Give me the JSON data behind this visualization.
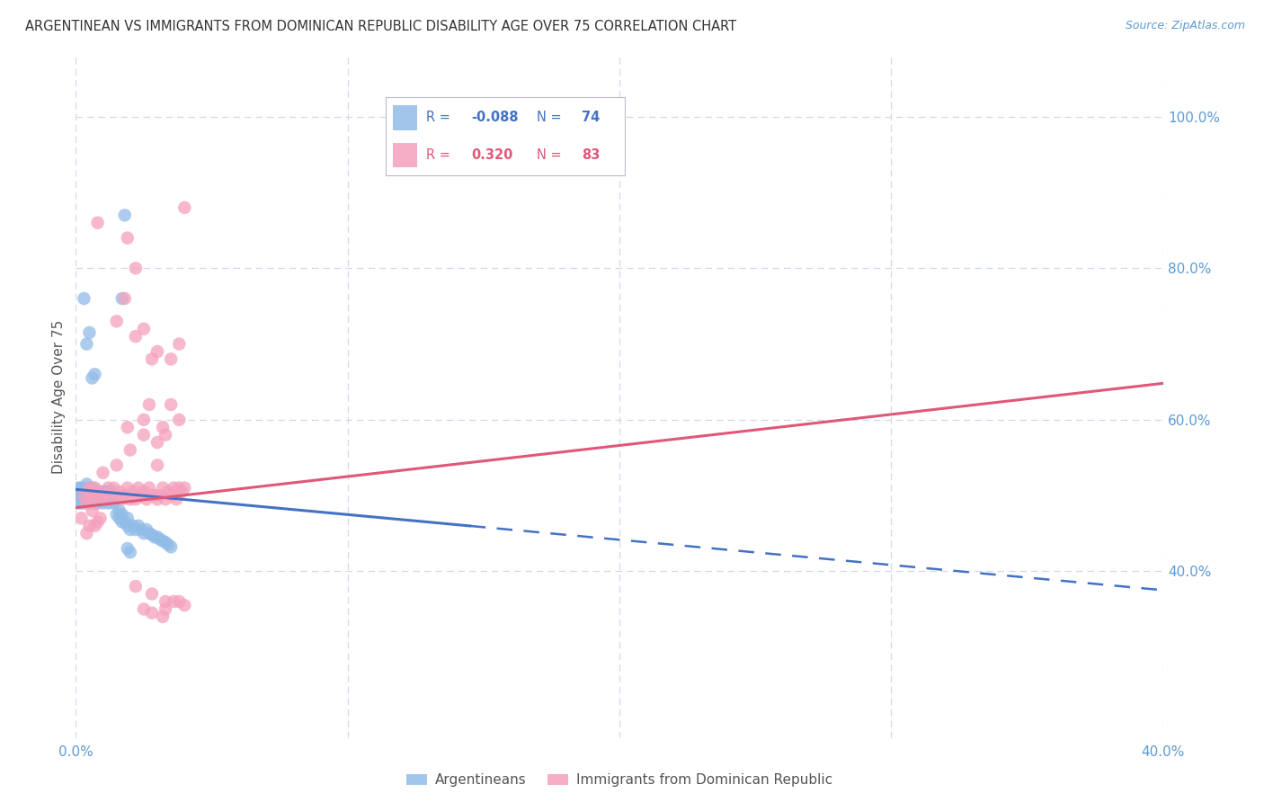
{
  "title": "ARGENTINEAN VS IMMIGRANTS FROM DOMINICAN REPUBLIC DISABILITY AGE OVER 75 CORRELATION CHART",
  "source": "Source: ZipAtlas.com",
  "ylabel": "Disability Age Over 75",
  "xlim": [
    0.0,
    0.4
  ],
  "ylim": [
    0.18,
    1.08
  ],
  "xtick_positions": [
    0.0,
    0.1,
    0.2,
    0.3,
    0.4
  ],
  "xticklabels": [
    "0.0%",
    "",
    "",
    "",
    "40.0%"
  ],
  "yticks_right": [
    0.4,
    0.6,
    0.8,
    1.0
  ],
  "ytick_right_labels": [
    "40.0%",
    "60.0%",
    "80.0%",
    "100.0%"
  ],
  "legend_R1": "-0.088",
  "legend_N1": "74",
  "legend_R2": "0.320",
  "legend_N2": "83",
  "blue_color": "#92bce8",
  "pink_color": "#f5a0bc",
  "blue_line_color": "#4472c4",
  "pink_line_color": "#e05878",
  "axis_color": "#5b9bd5",
  "grid_color": "#d0d8e8",
  "background_color": "#ffffff",
  "blue_x": [
    0.001,
    0.001,
    0.001,
    0.002,
    0.002,
    0.002,
    0.002,
    0.003,
    0.003,
    0.003,
    0.003,
    0.004,
    0.004,
    0.004,
    0.004,
    0.005,
    0.005,
    0.005,
    0.005,
    0.006,
    0.006,
    0.006,
    0.006,
    0.007,
    0.007,
    0.007,
    0.008,
    0.008,
    0.008,
    0.009,
    0.009,
    0.01,
    0.01,
    0.011,
    0.011,
    0.012,
    0.012,
    0.013,
    0.013,
    0.014,
    0.014,
    0.015,
    0.016,
    0.016,
    0.017,
    0.017,
    0.018,
    0.019,
    0.019,
    0.02,
    0.021,
    0.022,
    0.023,
    0.024,
    0.025,
    0.026,
    0.027,
    0.028,
    0.029,
    0.03,
    0.031,
    0.032,
    0.033,
    0.034,
    0.035,
    0.003,
    0.004,
    0.005,
    0.006,
    0.007,
    0.017,
    0.018,
    0.019,
    0.02
  ],
  "blue_y": [
    0.51,
    0.5,
    0.49,
    0.5,
    0.49,
    0.51,
    0.505,
    0.505,
    0.49,
    0.5,
    0.51,
    0.5,
    0.495,
    0.505,
    0.515,
    0.5,
    0.49,
    0.51,
    0.505,
    0.495,
    0.505,
    0.5,
    0.51,
    0.5,
    0.49,
    0.505,
    0.5,
    0.49,
    0.505,
    0.495,
    0.505,
    0.49,
    0.505,
    0.495,
    0.505,
    0.49,
    0.505,
    0.495,
    0.505,
    0.49,
    0.5,
    0.475,
    0.48,
    0.47,
    0.465,
    0.475,
    0.465,
    0.46,
    0.47,
    0.455,
    0.46,
    0.455,
    0.46,
    0.455,
    0.45,
    0.455,
    0.45,
    0.448,
    0.445,
    0.445,
    0.442,
    0.44,
    0.438,
    0.435,
    0.432,
    0.76,
    0.7,
    0.715,
    0.655,
    0.66,
    0.76,
    0.87,
    0.43,
    0.425
  ],
  "pink_x": [
    0.002,
    0.003,
    0.004,
    0.005,
    0.005,
    0.006,
    0.006,
    0.007,
    0.007,
    0.008,
    0.009,
    0.01,
    0.011,
    0.012,
    0.013,
    0.014,
    0.015,
    0.016,
    0.017,
    0.018,
    0.019,
    0.02,
    0.021,
    0.022,
    0.023,
    0.024,
    0.025,
    0.026,
    0.027,
    0.028,
    0.029,
    0.03,
    0.031,
    0.032,
    0.033,
    0.034,
    0.035,
    0.036,
    0.037,
    0.038,
    0.039,
    0.04,
    0.015,
    0.018,
    0.019,
    0.022,
    0.022,
    0.025,
    0.028,
    0.03,
    0.035,
    0.038,
    0.04,
    0.008,
    0.019,
    0.025,
    0.027,
    0.03,
    0.033,
    0.03,
    0.035,
    0.038,
    0.032,
    0.025,
    0.02,
    0.015,
    0.01,
    0.006,
    0.007,
    0.004,
    0.005,
    0.008,
    0.009,
    0.032,
    0.033,
    0.025,
    0.028,
    0.036,
    0.04,
    0.022,
    0.028,
    0.033,
    0.038
  ],
  "pink_y": [
    0.47,
    0.5,
    0.49,
    0.51,
    0.5,
    0.495,
    0.505,
    0.5,
    0.51,
    0.505,
    0.5,
    0.495,
    0.5,
    0.51,
    0.495,
    0.51,
    0.5,
    0.505,
    0.495,
    0.5,
    0.51,
    0.495,
    0.505,
    0.495,
    0.51,
    0.5,
    0.505,
    0.495,
    0.51,
    0.5,
    0.5,
    0.495,
    0.5,
    0.51,
    0.495,
    0.505,
    0.5,
    0.51,
    0.495,
    0.51,
    0.505,
    0.51,
    0.73,
    0.76,
    0.84,
    0.8,
    0.71,
    0.72,
    0.68,
    0.69,
    0.68,
    0.7,
    0.88,
    0.86,
    0.59,
    0.6,
    0.62,
    0.57,
    0.58,
    0.54,
    0.62,
    0.6,
    0.59,
    0.58,
    0.56,
    0.54,
    0.53,
    0.48,
    0.46,
    0.45,
    0.46,
    0.465,
    0.47,
    0.34,
    0.35,
    0.35,
    0.345,
    0.36,
    0.355,
    0.38,
    0.37,
    0.36,
    0.36
  ],
  "blue_line_x0": 0.0,
  "blue_line_x_solid_end": 0.145,
  "blue_line_x1": 0.4,
  "blue_line_y0": 0.508,
  "blue_line_y1": 0.375,
  "pink_line_x0": 0.0,
  "pink_line_x1": 0.4,
  "pink_line_y0": 0.484,
  "pink_line_y1": 0.648
}
